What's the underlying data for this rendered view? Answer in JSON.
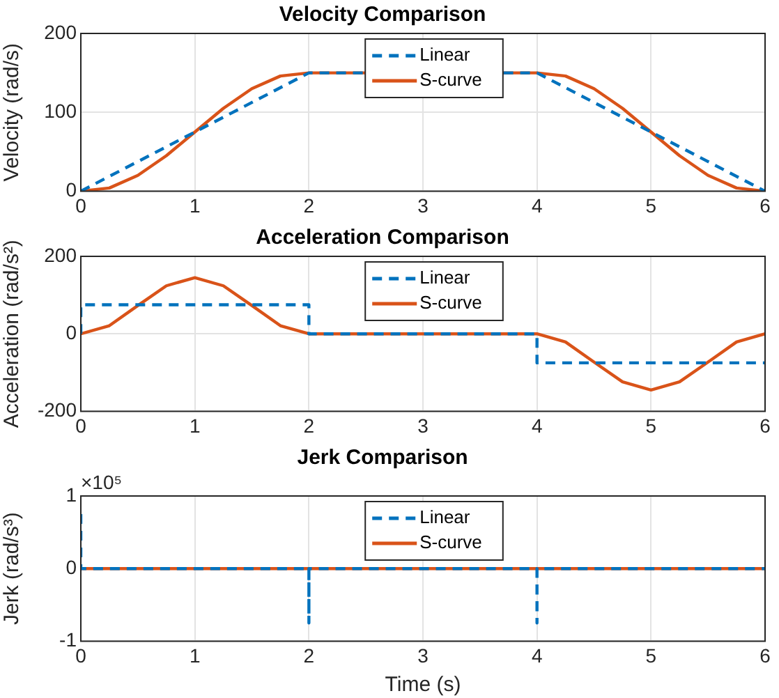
{
  "chart_data": [
    {
      "type": "line",
      "title": "Velocity Comparison",
      "ylabel": "Velocity (rad/s)",
      "xlim": [
        0,
        6
      ],
      "xticks": [
        0,
        1,
        2,
        3,
        4,
        5,
        6
      ],
      "ylim": [
        0,
        200
      ],
      "yticks": [
        0,
        100,
        200
      ],
      "grid": true,
      "legend": "top",
      "marker": "none",
      "series": [
        {
          "name": "Linear",
          "color": "#0072bd",
          "line_style": "dashed",
          "x": [
            0,
            2,
            4,
            6
          ],
          "values": [
            0,
            150,
            150,
            0
          ]
        },
        {
          "name": "S-curve",
          "color": "#d95319",
          "line_style": "solid",
          "x": [
            0,
            0.25,
            0.5,
            0.75,
            1,
            1.25,
            1.5,
            1.75,
            2,
            4,
            4.25,
            4.5,
            4.75,
            5,
            5.25,
            5.5,
            5.75,
            6
          ],
          "values": [
            0,
            4,
            20,
            45,
            75,
            105,
            130,
            146,
            150,
            150,
            146,
            130,
            105,
            75,
            45,
            20,
            4,
            0
          ]
        }
      ]
    },
    {
      "type": "line",
      "title": "Acceleration Comparison",
      "ylabel": "Acceleration (rad/s²)",
      "xlim": [
        0,
        6
      ],
      "xticks": [
        0,
        1,
        2,
        3,
        4,
        5,
        6
      ],
      "ylim": [
        -200,
        200
      ],
      "yticks": [
        -200,
        0,
        200
      ],
      "grid": true,
      "legend": "top",
      "marker": "none",
      "series": [
        {
          "name": "Linear",
          "color": "#0072bd",
          "line_style": "dashed",
          "x": [
            0,
            0,
            2,
            2,
            4,
            4,
            6
          ],
          "values": [
            0,
            75,
            75,
            0,
            0,
            -75,
            -75
          ]
        },
        {
          "name": "S-curve",
          "color": "#d95319",
          "line_style": "solid",
          "x": [
            0,
            0.25,
            0.5,
            0.75,
            1,
            1.25,
            1.5,
            1.75,
            2,
            4,
            4.25,
            4.5,
            4.75,
            5,
            5.25,
            5.5,
            5.75,
            6
          ],
          "values": [
            0,
            21,
            73,
            124,
            145,
            124,
            73,
            21,
            0,
            0,
            -21,
            -73,
            -124,
            -145,
            -124,
            -73,
            -21,
            0
          ]
        }
      ]
    },
    {
      "type": "line",
      "title": "Jerk Comparison",
      "xlabel": "Time (s)",
      "ylabel": "Jerk (rad/s³)",
      "annotations": [
        "×10⁵"
      ],
      "xlim": [
        0,
        6
      ],
      "xticks": [
        0,
        1,
        2,
        3,
        4,
        5,
        6
      ],
      "ylim": [
        -1,
        1
      ],
      "yticks": [
        -1,
        0,
        1
      ],
      "grid": true,
      "legend": "top",
      "marker": "none",
      "series": [
        {
          "name": "Linear",
          "color": "#0072bd",
          "line_style": "dashed",
          "x": [
            0,
            0,
            2,
            2,
            2,
            4,
            4,
            4,
            6
          ],
          "values": [
            0.75,
            0,
            0,
            -0.75,
            0,
            0,
            -0.75,
            0,
            0
          ]
        },
        {
          "name": "S-curve",
          "color": "#d95319",
          "line_style": "solid",
          "x": [
            0,
            6
          ],
          "values": [
            0,
            0
          ]
        }
      ]
    }
  ]
}
